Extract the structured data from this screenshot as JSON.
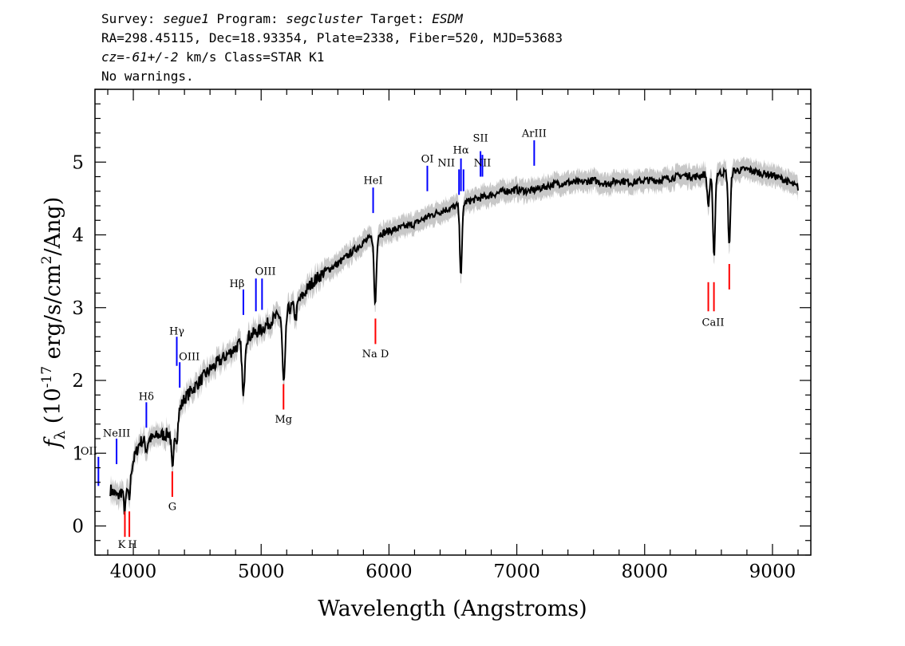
{
  "header": {
    "survey_label": "Survey:",
    "survey": "segue1",
    "program_label": "Program:",
    "program": "segcluster",
    "target_label": "Target:",
    "target": "ESDM",
    "line2": "RA=298.45115, Dec=18.93354, Plate=2338, Fiber=520, MJD=53683",
    "cz_label": "cz=",
    "cz_value": "-61+/-2",
    "cz_rest": " km/s Class=STAR K1",
    "line4": "No warnings."
  },
  "chart_data": {
    "type": "line",
    "title": "",
    "xlabel": "Wavelength (Angstroms)",
    "ylabel": "fλ (10^-17 erg/s/cm^2/Ang)",
    "xlim": [
      3700,
      9300
    ],
    "ylim": [
      -0.4,
      6.0
    ],
    "xticks": [
      4000,
      5000,
      6000,
      7000,
      8000,
      9000
    ],
    "yticks": [
      0,
      1,
      2,
      3,
      4,
      5
    ],
    "continuum": {
      "x": [
        3820,
        3880,
        3950,
        4000,
        4050,
        4100,
        4150,
        4200,
        4250,
        4300,
        4350,
        4400,
        4500,
        4600,
        4700,
        4800,
        4900,
        5000,
        5100,
        5200,
        5300,
        5400,
        5500,
        5600,
        5700,
        5800,
        5900,
        6000,
        6100,
        6200,
        6300,
        6400,
        6500,
        6600,
        6700,
        6800,
        6900,
        7000,
        7100,
        7200,
        7300,
        7400,
        7500,
        7600,
        7700,
        7800,
        7900,
        8000,
        8100,
        8200,
        8300,
        8400,
        8500,
        8600,
        8700,
        8800,
        8900,
        9000,
        9100,
        9200
      ],
      "y": [
        0.5,
        0.4,
        0.6,
        0.9,
        1.15,
        1.2,
        1.2,
        1.25,
        1.25,
        1.3,
        1.55,
        1.75,
        1.95,
        2.15,
        2.3,
        2.45,
        2.6,
        2.7,
        2.85,
        2.95,
        3.1,
        3.35,
        3.5,
        3.6,
        3.75,
        3.9,
        4.0,
        4.05,
        4.1,
        4.15,
        4.25,
        4.32,
        4.38,
        4.45,
        4.5,
        4.55,
        4.6,
        4.62,
        4.6,
        4.65,
        4.7,
        4.72,
        4.72,
        4.75,
        4.7,
        4.75,
        4.72,
        4.75,
        4.75,
        4.78,
        4.82,
        4.8,
        4.85,
        4.85,
        4.88,
        4.9,
        4.85,
        4.82,
        4.75,
        4.65
      ]
    },
    "absorption_features": [
      {
        "x": 3934,
        "depth": 0.35
      },
      {
        "x": 3968,
        "depth": 0.35
      },
      {
        "x": 4102,
        "depth": 0.15
      },
      {
        "x": 4308,
        "depth": 0.6
      },
      {
        "x": 4340,
        "depth": 0.3
      },
      {
        "x": 4861,
        "depth": 0.8
      },
      {
        "x": 5172,
        "depth": 0.65
      },
      {
        "x": 5184,
        "depth": 0.55
      },
      {
        "x": 5270,
        "depth": 0.2
      },
      {
        "x": 5892,
        "depth": 0.95
      },
      {
        "x": 6563,
        "depth": 0.95
      },
      {
        "x": 8498,
        "depth": 0.45
      },
      {
        "x": 8542,
        "depth": 1.15
      },
      {
        "x": 8662,
        "depth": 1.0
      }
    ],
    "error_band": 0.12,
    "lines": [
      {
        "label": "OII",
        "x": 3727,
        "y": [
          0.55,
          0.95
        ],
        "color": "#0000ff",
        "label_y": 0.98,
        "label_dx": -12
      },
      {
        "label": "NeIII",
        "x": 3869,
        "y": [
          0.85,
          1.2
        ],
        "color": "#0000ff",
        "label_y": 1.23,
        "label_dx": 0
      },
      {
        "label": "Hδ",
        "x": 4102,
        "y": [
          1.35,
          1.7
        ],
        "color": "#0000ff",
        "label_y": 1.73,
        "label_dx": 0
      },
      {
        "label": "Hγ",
        "x": 4340,
        "y": [
          2.2,
          2.6
        ],
        "color": "#0000ff",
        "label_y": 2.63,
        "label_dx": 0
      },
      {
        "label": "OIII",
        "x": 4363,
        "y": [
          1.9,
          2.25
        ],
        "color": "#0000ff",
        "label_y": 2.28,
        "label_dx": 12
      },
      {
        "label": "Hβ",
        "x": 4861,
        "y": [
          2.9,
          3.25
        ],
        "color": "#0000ff",
        "label_y": 3.28,
        "label_dx": -8
      },
      {
        "label": "OIII",
        "x": 4959,
        "y": [
          2.95,
          3.4
        ],
        "color": "#0000ff",
        "label_y": 3.45,
        "label_dx": 12,
        "x2": 5007
      },
      {
        "label": "HeI",
        "x": 5876,
        "y": [
          4.3,
          4.65
        ],
        "color": "#0000ff",
        "label_y": 4.7,
        "label_dx": 0
      },
      {
        "label": "OI",
        "x": 6300,
        "y": [
          4.6,
          4.95
        ],
        "color": "#0000ff",
        "label_y": 5.0,
        "label_dx": 0
      },
      {
        "label": "NII",
        "x": 6548,
        "y": [
          4.55,
          4.9
        ],
        "color": "#0000ff",
        "label_y": 4.94,
        "label_dx": -16
      },
      {
        "label": "Hα",
        "x": 6563,
        "y": [
          4.6,
          5.05
        ],
        "color": "#0000ff",
        "label_y": 5.12,
        "label_dx": 0
      },
      {
        "label": "NII",
        "x": 6583,
        "y": [
          4.6,
          4.9
        ],
        "color": "#0000ff",
        "label_y": 0,
        "hide_label": true
      },
      {
        "label": "SII",
        "x": 6716,
        "y": [
          4.8,
          5.15
        ],
        "color": "#0000ff",
        "label_y": 5.28,
        "label_dx": 0
      },
      {
        "label": "NII",
        "x": 6731,
        "y": [
          4.8,
          5.1
        ],
        "color": "#0000ff",
        "label_y": 4.94,
        "label_dx": 0
      },
      {
        "label": "ArIII",
        "x": 7136,
        "y": [
          4.95,
          5.3
        ],
        "color": "#0000ff",
        "label_y": 5.35,
        "label_dx": 0
      },
      {
        "label": "K",
        "x": 3934,
        "y": [
          -0.15,
          0.2
        ],
        "color": "#ff0000",
        "label_y": -0.3,
        "label_dx": -4
      },
      {
        "label": "H",
        "x": 3969,
        "y": [
          -0.15,
          0.2
        ],
        "color": "#ff0000",
        "label_y": -0.3,
        "label_dx": 4
      },
      {
        "label": "G",
        "x": 4305,
        "y": [
          0.4,
          0.75
        ],
        "color": "#ff0000",
        "label_y": 0.22,
        "label_dx": 0
      },
      {
        "label": "Mg",
        "x": 5175,
        "y": [
          1.6,
          1.95
        ],
        "color": "#ff0000",
        "label_y": 1.42,
        "label_dx": 0
      },
      {
        "label": "Na D",
        "x": 5894,
        "y": [
          2.5,
          2.85
        ],
        "color": "#ff0000",
        "label_y": 2.32,
        "label_dx": 0
      },
      {
        "label": "CaII",
        "x": 8498,
        "y": [
          2.95,
          3.35
        ],
        "color": "#ff0000",
        "label_y": 2.75,
        "label_dx": 6
      },
      {
        "label": "CaII",
        "x": 8542,
        "y": [
          2.95,
          3.35
        ],
        "color": "#ff0000",
        "label_y": 0,
        "hide_label": true
      },
      {
        "label": "CaII",
        "x": 8662,
        "y": [
          3.25,
          3.6
        ],
        "color": "#ff0000",
        "label_y": 0,
        "hide_label": true
      }
    ]
  }
}
